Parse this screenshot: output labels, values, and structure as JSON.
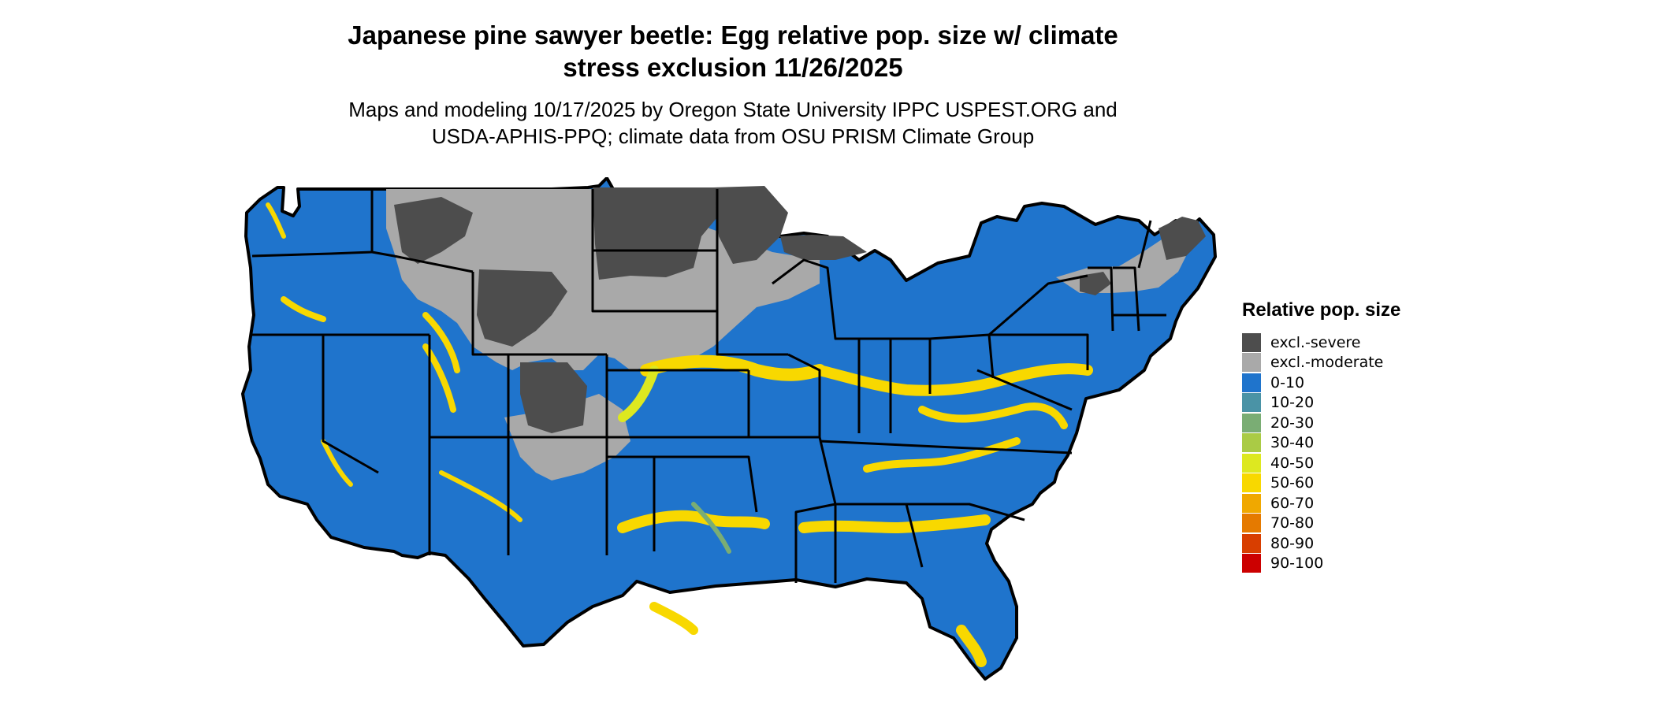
{
  "title_line1": "Japanese pine sawyer beetle: Egg relative pop. size w/ climate",
  "title_line2": "stress exclusion 11/26/2025",
  "subtitle_line1": "Maps and modeling 10/17/2025 by Oregon State University IPPC USPEST.ORG and",
  "subtitle_line2": "USDA-APHIS-PPQ; climate data from OSU PRISM Climate Group",
  "legend": {
    "title": "Relative pop. size",
    "items": [
      {
        "label": "excl.-severe",
        "color": "#4d4d4d"
      },
      {
        "label": "excl.-moderate",
        "color": "#a9a9a9"
      },
      {
        "label": "0-10",
        "color": "#1f74cc"
      },
      {
        "label": "10-20",
        "color": "#4a93a6"
      },
      {
        "label": "20-30",
        "color": "#7aad74"
      },
      {
        "label": "30-40",
        "color": "#aacb45"
      },
      {
        "label": "40-50",
        "color": "#dde820"
      },
      {
        "label": "50-60",
        "color": "#f8d800"
      },
      {
        "label": "60-70",
        "color": "#f0a800"
      },
      {
        "label": "70-80",
        "color": "#e57a00"
      },
      {
        "label": "80-90",
        "color": "#d83e00"
      },
      {
        "label": "90-100",
        "color": "#cc0000"
      }
    ]
  }
}
